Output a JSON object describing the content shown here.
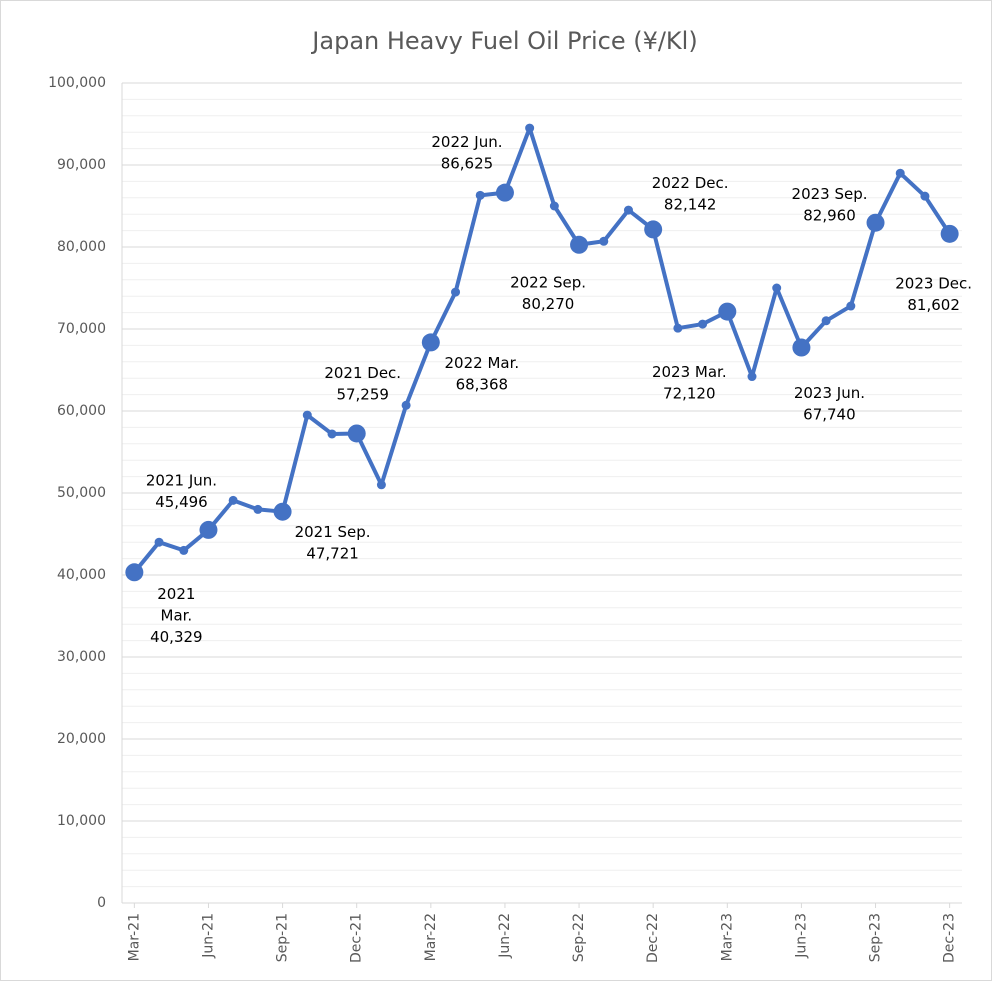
{
  "chart_data": {
    "type": "line",
    "title": "Japan Heavy Fuel Oil Price (¥/Kl)",
    "categories": [
      "Mar-21",
      null,
      null,
      "Jun-21",
      null,
      null,
      "Sep-21",
      null,
      null,
      "Dec-21",
      null,
      null,
      "Mar-22",
      null,
      null,
      "Jun-22",
      null,
      null,
      "Sep-22",
      null,
      null,
      "Dec-22",
      null,
      null,
      "Mar-23",
      null,
      null,
      "Jun-23",
      null,
      null,
      "Sep-23",
      null,
      null,
      "Dec-23"
    ],
    "series": [
      {
        "name": "Japan Heavy Fuel Oil Price",
        "color": "#4472c4",
        "values": [
          40329,
          44000,
          43000,
          45496,
          49100,
          48000,
          47721,
          59500,
          57200,
          57259,
          51000,
          60700,
          68368,
          74500,
          86300,
          86625,
          94500,
          85000,
          80270,
          80700,
          84500,
          82142,
          70100,
          70600,
          72120,
          64200,
          75000,
          67740,
          71000,
          72800,
          82960,
          89000,
          86200,
          81602
        ],
        "value_labels": [
          [
            "2021",
            "Mar.",
            "40,329"
          ],
          null,
          null,
          [
            "2021 Jun.",
            "45,496"
          ],
          null,
          null,
          [
            "2021 Sep.",
            "47,721"
          ],
          null,
          null,
          [
            "2021 Dec.",
            "57,259"
          ],
          null,
          null,
          [
            "2022 Mar.",
            "68,368"
          ],
          null,
          null,
          [
            "2022 Jun.",
            "86,625"
          ],
          null,
          null,
          [
            "2022 Sep.",
            "80,270"
          ],
          null,
          null,
          [
            "2022 Dec.",
            "82,142"
          ],
          null,
          null,
          [
            "2023 Mar.",
            "72,120"
          ],
          null,
          null,
          [
            "2023 Jun.",
            "67,740"
          ],
          null,
          null,
          [
            "2023 Sep.",
            "82,960"
          ],
          null,
          null,
          [
            "2023 Dec.",
            "81,602"
          ]
        ]
      }
    ],
    "ylim": [
      0,
      100000
    ],
    "yticks": [
      0,
      {
        "value": 10000,
        "label": "10,000"
      },
      {
        "value": 20000,
        "label": "20,000"
      },
      {
        "value": 30000,
        "label": "30,000"
      },
      {
        "value": 40000,
        "label": "40,000"
      },
      {
        "value": 50000,
        "label": "50,000"
      },
      {
        "value": 60000,
        "label": "60,000"
      },
      {
        "value": 70000,
        "label": "70,000"
      },
      {
        "value": 80000,
        "label": "80,000"
      },
      {
        "value": 90000,
        "label": "90,000"
      },
      {
        "value": 100000,
        "label": "100,000"
      }
    ],
    "minor_grid_step": 2000,
    "grid": true
  }
}
